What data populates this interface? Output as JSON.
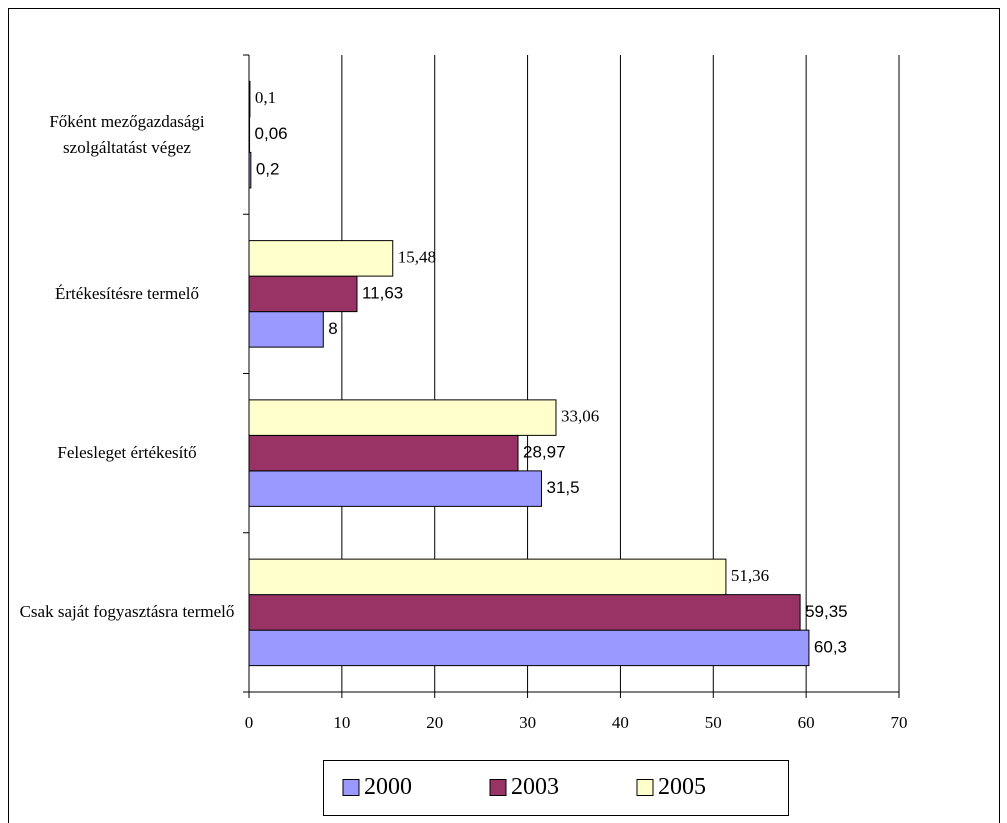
{
  "chart_data": {
    "type": "bar",
    "orientation": "horizontal",
    "categories": [
      "Főként mezőgazdasági szolgáltatást végez",
      "Értékesítésre termelő",
      "Felesleget értékesítő",
      "Csak saját fogyasztásra termelő"
    ],
    "series": [
      {
        "name": "2000",
        "color": "#9999ff",
        "values": [
          0.2,
          8,
          31.5,
          60.3
        ],
        "value_labels": [
          "0,2",
          "8",
          "31,5",
          "60,3"
        ]
      },
      {
        "name": "2003",
        "color": "#993366",
        "values": [
          0.06,
          11.63,
          28.97,
          59.35
        ],
        "value_labels": [
          "0,06",
          "11,63",
          "28,97",
          "59,35"
        ]
      },
      {
        "name": "2005",
        "color": "#ffffcc",
        "values": [
          0.1,
          15.48,
          33.06,
          51.36
        ],
        "value_labels": [
          "0,1",
          "15,48",
          "33,06",
          "51,36"
        ]
      }
    ],
    "xlim": [
      0,
      70
    ],
    "xticks": [
      0,
      10,
      20,
      30,
      40,
      50,
      60,
      70
    ],
    "grid": true,
    "legend": "bottom"
  }
}
